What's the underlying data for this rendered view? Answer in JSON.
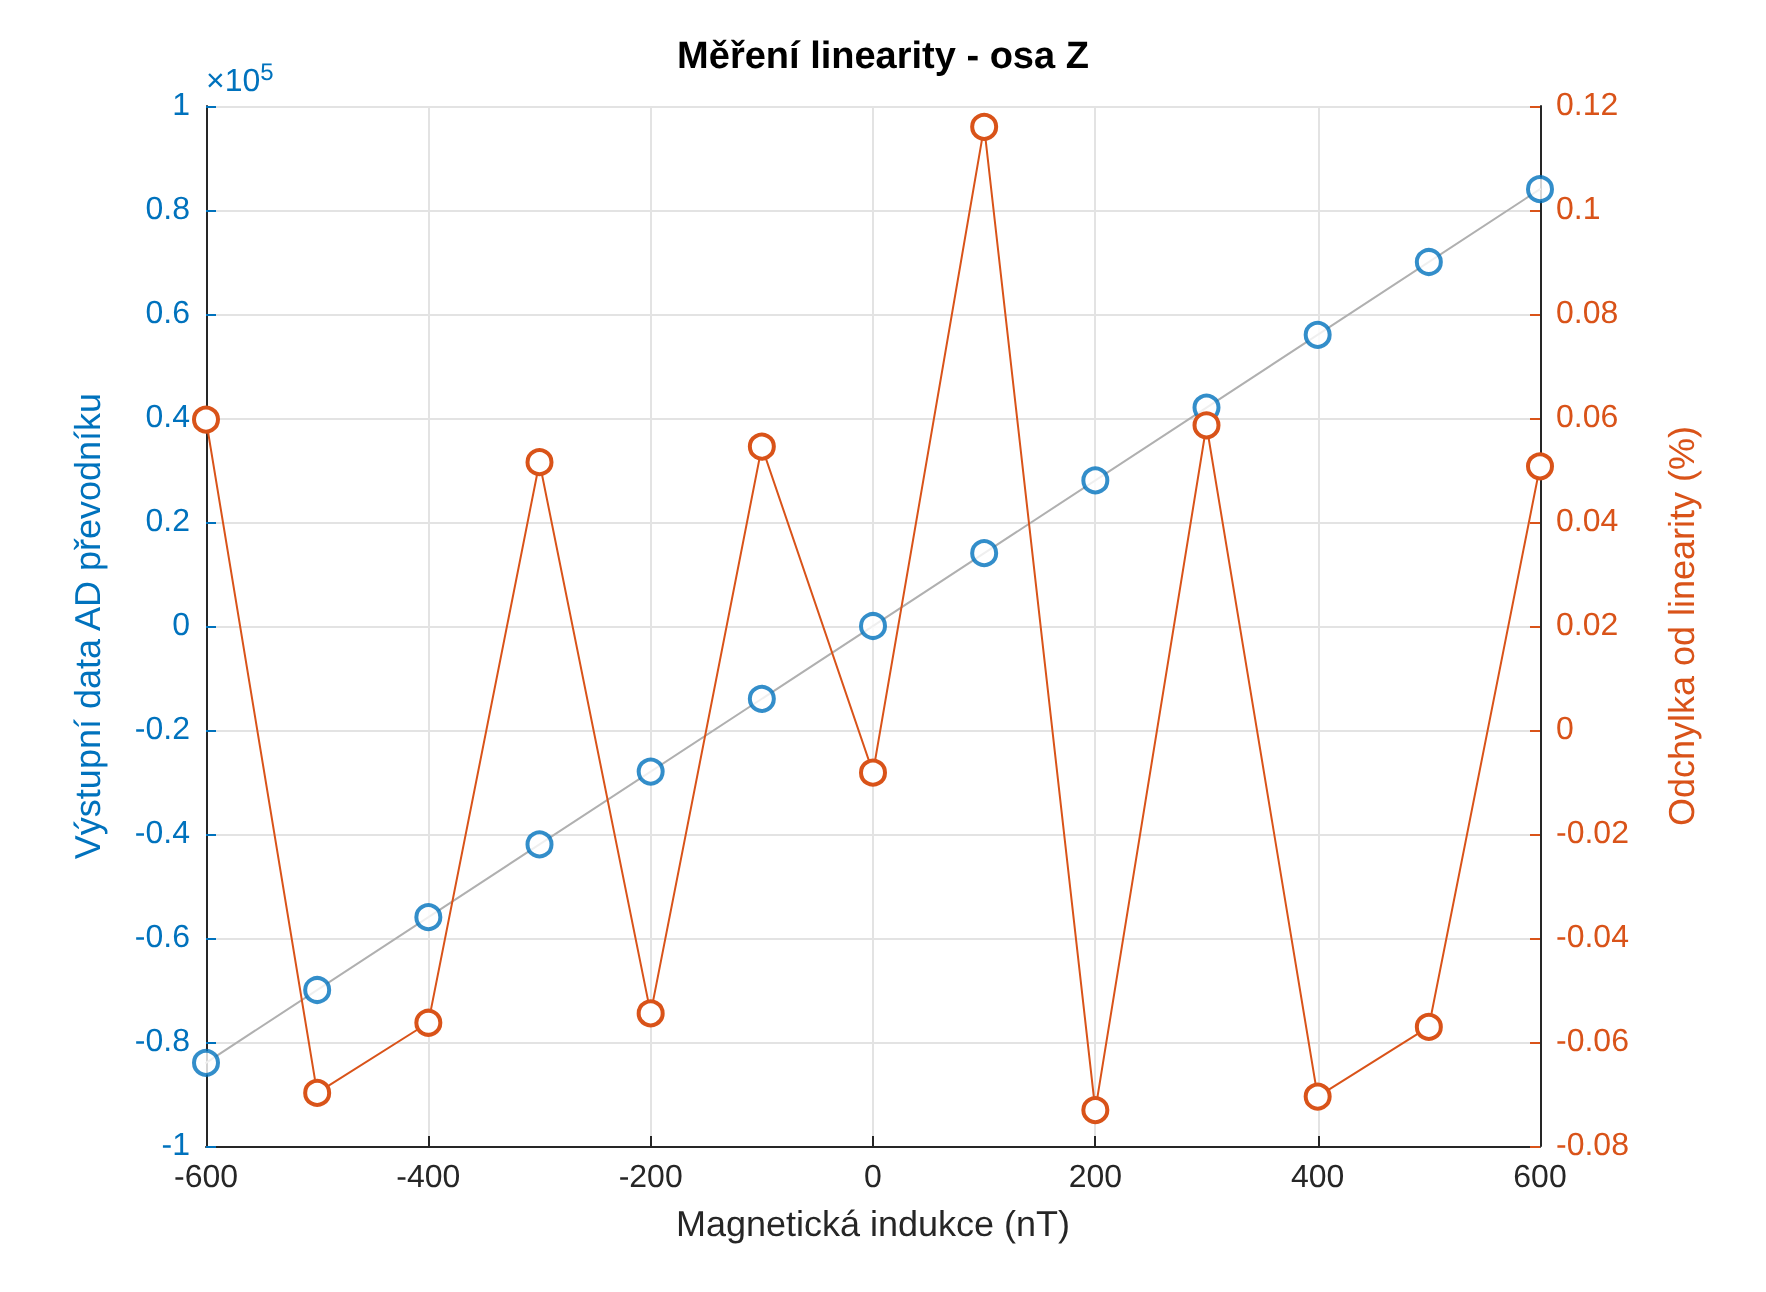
{
  "chart_data": {
    "type": "scatter",
    "title": "Měření linearity - osa Z",
    "xlabel": "Magnetická indukce (nT)",
    "ylabel": "Výstupní data AD převodníku",
    "y2label": "Odchylka od linearity (%)",
    "annotations": [
      "×10$^{5}$"
    ],
    "x": [
      -600,
      -500,
      -400,
      -300,
      -200,
      -100,
      0,
      100,
      200,
      300,
      400,
      500,
      600
    ],
    "series": [
      {
        "color": "#0072bd",
        "values": [
          -0.84,
          -0.7,
          -0.56,
          -0.42,
          -0.28,
          -0.14,
          0,
          0.14,
          0.28,
          0.42,
          0.56,
          0.7,
          0.84
        ]
      },
      {
        "type": "line",
        "marker": "none",
        "color": "#b0b0b0",
        "x": [
          -600,
          600
        ],
        "values": [
          -0.84,
          0.84
        ]
      },
      {
        "type": "line",
        "axis": "y2",
        "color": "#d95319",
        "values": [
          0.0597,
          -0.0698,
          -0.0563,
          0.0515,
          -0.0545,
          0.0545,
          -0.0082,
          0.116,
          -0.0731,
          0.0586,
          -0.0705,
          -0.0571,
          0.0507
        ]
      }
    ],
    "xlim": [
      -600,
      600
    ],
    "xticks": [
      -600,
      -400,
      -200,
      0,
      200,
      400,
      600
    ],
    "ylim": [
      -1,
      1
    ],
    "yticks": [
      -1,
      -0.8,
      -0.6,
      -0.4,
      -0.2,
      0,
      0.2,
      0.4,
      0.6,
      0.8,
      1
    ],
    "y2lim": [
      -0.08,
      0.12
    ],
    "y2ticks": [
      -0.08,
      -0.06,
      -0.04,
      -0.02,
      0,
      0.02,
      0.04,
      0.06,
      0.08,
      0.1,
      0.12
    ],
    "grid": true,
    "marker": "circle"
  }
}
